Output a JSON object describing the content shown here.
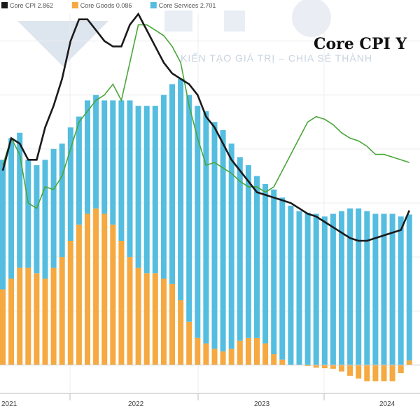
{
  "chart_data": {
    "type": "bar",
    "title": "Core CPI Y",
    "watermark_text": "KIẾN TẠO GIÁ TRỊ – CHIA SẺ THÀNH",
    "legend": [
      {
        "label": "Core CPI",
        "value": "2.862",
        "color": "#1a1a1a"
      },
      {
        "label": "Core Goods",
        "value": "0.086",
        "color": "#f5a940"
      },
      {
        "label": "Core Services",
        "value": "2.701",
        "color": "#54bde0"
      }
    ],
    "x_tick_labels": [
      "2021",
      "2022",
      "2023",
      "2024"
    ],
    "ylim": [
      -0.5,
      6.5
    ],
    "grid": true,
    "colors": {
      "goods": "#f5a940",
      "services": "#54bde0",
      "core": "#1a1a1a",
      "green": "#4aa63a"
    },
    "series": [
      {
        "name": "Core Goods",
        "values": [
          1.4,
          1.6,
          1.8,
          1.8,
          1.7,
          1.6,
          1.8,
          2.0,
          2.3,
          2.6,
          2.8,
          2.9,
          2.8,
          2.6,
          2.3,
          2.0,
          1.8,
          1.7,
          1.7,
          1.6,
          1.5,
          1.2,
          0.8,
          0.5,
          0.4,
          0.3,
          0.25,
          0.3,
          0.45,
          0.5,
          0.5,
          0.4,
          0.2,
          0.1,
          0.0,
          0.0,
          -0.02,
          -0.05,
          -0.06,
          -0.07,
          -0.12,
          -0.2,
          -0.25,
          -0.3,
          -0.3,
          -0.3,
          -0.3,
          -0.15,
          0.086
        ]
      },
      {
        "name": "Core Services",
        "values": [
          2.4,
          2.6,
          2.5,
          2.0,
          2.0,
          2.2,
          2.2,
          2.1,
          2.1,
          2.0,
          2.1,
          2.1,
          2.1,
          2.3,
          2.6,
          2.9,
          3.0,
          3.1,
          3.1,
          3.4,
          3.7,
          4.1,
          4.2,
          4.3,
          4.3,
          4.2,
          4.1,
          3.8,
          3.4,
          3.2,
          3.0,
          2.95,
          3.05,
          3.0,
          2.95,
          2.85,
          2.82,
          2.8,
          2.75,
          2.8,
          2.85,
          2.9,
          2.9,
          2.85,
          2.8,
          2.8,
          2.8,
          2.75,
          2.701
        ]
      },
      {
        "name": "Core CPI",
        "values": [
          3.6,
          4.2,
          4.1,
          3.8,
          3.8,
          4.4,
          4.8,
          5.3,
          6.0,
          6.4,
          6.4,
          6.2,
          6.0,
          5.9,
          5.9,
          6.3,
          6.5,
          6.2,
          5.9,
          5.6,
          5.4,
          5.3,
          5.2,
          5.0,
          4.6,
          4.4,
          4.1,
          3.8,
          3.6,
          3.4,
          3.2,
          3.15,
          3.1,
          3.05,
          3.0,
          2.9,
          2.8,
          2.75,
          2.65,
          2.55,
          2.45,
          2.35,
          2.3,
          2.3,
          2.35,
          2.4,
          2.45,
          2.5,
          2.862
        ]
      },
      {
        "name": "",
        "values": [
          3.7,
          4.2,
          3.9,
          3.0,
          2.9,
          3.3,
          3.25,
          3.5,
          4.0,
          4.5,
          4.7,
          4.9,
          5.0,
          5.2,
          4.9,
          5.6,
          6.3,
          6.3,
          6.2,
          6.1,
          5.9,
          5.6,
          4.8,
          4.2,
          3.7,
          3.75,
          3.65,
          3.55,
          3.4,
          3.3,
          3.3,
          3.2,
          3.3,
          3.6,
          3.9,
          4.2,
          4.5,
          4.6,
          4.55,
          4.45,
          4.3,
          4.2,
          4.15,
          4.05,
          3.9,
          3.9,
          3.85,
          3.8,
          3.75
        ]
      }
    ]
  }
}
